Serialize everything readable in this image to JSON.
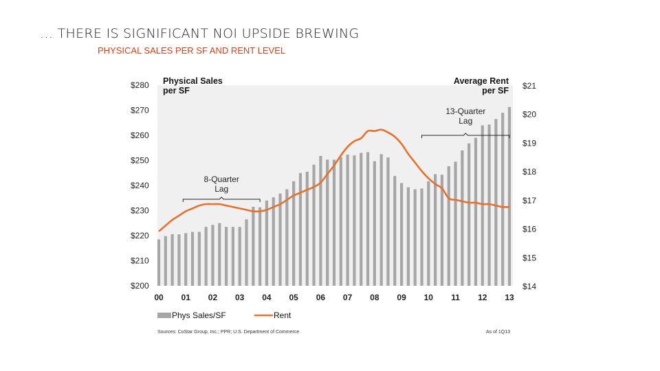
{
  "page": {
    "title": "… THERE IS SIGNIFICANT NOI UPSIDE BREWING",
    "subtitle": "PHYSICAL SALES PER SF AND RENT LEVEL"
  },
  "chart_data": {
    "type": "bar+line",
    "left_header": [
      "Physical Sales",
      "per SF"
    ],
    "right_header": [
      "Average Rent",
      "per SF"
    ],
    "left_axis": {
      "ylim": [
        200,
        280
      ],
      "ticks": [
        "$200",
        "$210",
        "$220",
        "$230",
        "$240",
        "$250",
        "$260",
        "$270",
        "$280"
      ]
    },
    "right_axis": {
      "ylim": [
        14,
        21
      ],
      "ticks": [
        "$14",
        "$15",
        "$16",
        "$17",
        "$18",
        "$19",
        "$20",
        "$21"
      ]
    },
    "x_ticks": [
      "00",
      "01",
      "02",
      "03",
      "04",
      "05",
      "06",
      "07",
      "08",
      "09",
      "10",
      "11",
      "12",
      "13"
    ],
    "x_range": [
      2000,
      2013
    ],
    "series": [
      {
        "name": "Phys Sales/SF",
        "kind": "bar",
        "axis": "left",
        "color": "#a6a6a6",
        "x": [
          2000,
          2000.25,
          2000.5,
          2000.75,
          2001,
          2001.25,
          2001.5,
          2001.75,
          2002,
          2002.25,
          2002.5,
          2002.75,
          2003,
          2003.25,
          2003.5,
          2003.75,
          2004,
          2004.25,
          2004.5,
          2004.75,
          2005,
          2005.25,
          2005.5,
          2005.75,
          2006,
          2006.25,
          2006.5,
          2006.75,
          2007,
          2007.25,
          2007.5,
          2007.75,
          2008,
          2008.25,
          2008.5,
          2008.75,
          2009,
          2009.25,
          2009.5,
          2009.75,
          2010,
          2010.25,
          2010.5,
          2010.75,
          2011,
          2011.25,
          2011.5,
          2011.75,
          2012,
          2012.25,
          2012.5,
          2012.75,
          2013
        ],
        "values": [
          218.5,
          219.8,
          220.6,
          220.5,
          221.0,
          221.5,
          221.5,
          223.5,
          224.3,
          225.0,
          223.5,
          223.5,
          223.5,
          226.5,
          231.5,
          231.3,
          234.0,
          235.3,
          236.8,
          238.5,
          241.7,
          245.0,
          245.5,
          248.3,
          251.8,
          250.3,
          250.3,
          251.3,
          252.3,
          252.0,
          253.0,
          253.3,
          249.7,
          252.5,
          251.2,
          243.8,
          241.0,
          239.3,
          238.5,
          238.8,
          241.7,
          244.5,
          244.3,
          247.7,
          249.5,
          254.0,
          256.8,
          259.0,
          264.0,
          264.3,
          266.5,
          269.0,
          271.3
        ]
      },
      {
        "name": "Rent",
        "kind": "line",
        "axis": "right",
        "color": "#e8702a",
        "x": [
          2000,
          2000.25,
          2000.5,
          2000.75,
          2001,
          2001.25,
          2001.5,
          2001.75,
          2002,
          2002.25,
          2002.5,
          2002.75,
          2003,
          2003.25,
          2003.5,
          2003.75,
          2004,
          2004.25,
          2004.5,
          2004.75,
          2005,
          2005.25,
          2005.5,
          2005.75,
          2006,
          2006.25,
          2006.5,
          2006.75,
          2007,
          2007.25,
          2007.5,
          2007.75,
          2008,
          2008.25,
          2008.5,
          2008.75,
          2009,
          2009.25,
          2009.5,
          2009.75,
          2010,
          2010.25,
          2010.5,
          2010.75,
          2011,
          2011.25,
          2011.5,
          2011.75,
          2012,
          2012.25,
          2012.5,
          2012.75,
          2013
        ],
        "values": [
          15.9,
          16.1,
          16.3,
          16.45,
          16.6,
          16.7,
          16.8,
          16.85,
          16.85,
          16.85,
          16.8,
          16.75,
          16.7,
          16.65,
          16.6,
          16.6,
          16.65,
          16.75,
          16.85,
          17.0,
          17.15,
          17.25,
          17.35,
          17.45,
          17.6,
          17.9,
          18.2,
          18.55,
          18.85,
          19.05,
          19.15,
          19.4,
          19.4,
          19.45,
          19.35,
          19.2,
          18.95,
          18.6,
          18.3,
          18.0,
          17.75,
          17.55,
          17.4,
          17.05,
          17.0,
          16.95,
          16.9,
          16.9,
          16.85,
          16.85,
          16.8,
          16.75,
          16.75
        ]
      }
    ],
    "annotations": [
      {
        "text": [
          "8-Quarter",
          "Lag"
        ],
        "from": 2000.9,
        "to": 2003.75
      },
      {
        "text": [
          "13-Quarter",
          "Lag"
        ],
        "from": 2009.75,
        "to": 2013
      }
    ],
    "legend": [
      "Phys Sales/SF",
      "Rent"
    ],
    "legend_position": "bottom-left"
  },
  "footer": {
    "source": "Sources: CoStar Group, Inc.; PPR; U.S. Department of Commerce",
    "as_of": "As of 1Q13"
  }
}
